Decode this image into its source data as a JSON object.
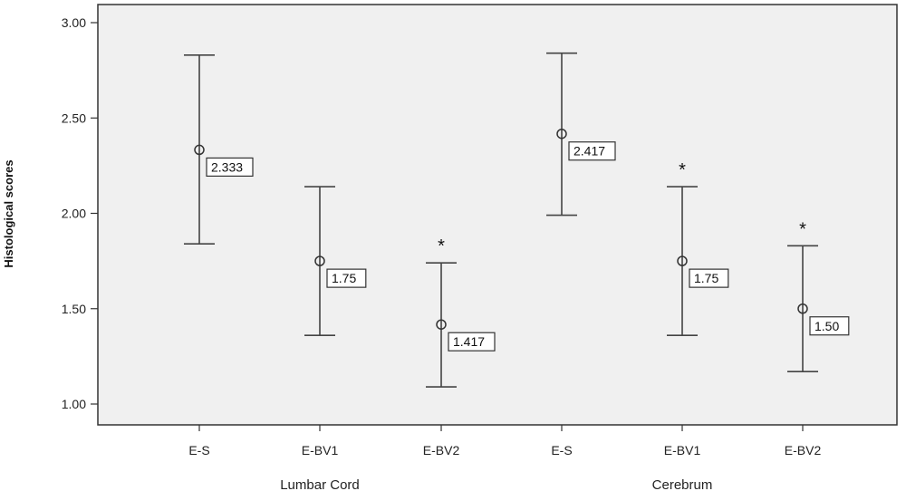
{
  "chart_data": {
    "type": "errorbar",
    "ylabel": "Histological scores",
    "ylim": [
      0.9,
      3.1
    ],
    "yticks": [
      "3.00",
      "2.50",
      "2.00",
      "1.50",
      "1.00"
    ],
    "grid": false,
    "background": "#f0f0f0",
    "groups": [
      "Lumbar Cord",
      "Cerebrum"
    ],
    "points": [
      {
        "category": "E-S",
        "group": 0,
        "mean": 2.333,
        "lower": 1.84,
        "upper": 2.83,
        "label": "2.333",
        "sig": ""
      },
      {
        "category": "E-BV1",
        "group": 0,
        "mean": 1.75,
        "lower": 1.36,
        "upper": 2.14,
        "label": "1.75",
        "sig": ""
      },
      {
        "category": "E-BV2",
        "group": 0,
        "mean": 1.417,
        "lower": 1.09,
        "upper": 1.74,
        "label": "1.417",
        "sig": "*"
      },
      {
        "category": "E-S",
        "group": 1,
        "mean": 2.417,
        "lower": 1.99,
        "upper": 2.84,
        "label": "2.417",
        "sig": ""
      },
      {
        "category": "E-BV1",
        "group": 1,
        "mean": 1.75,
        "lower": 1.36,
        "upper": 2.14,
        "label": "1.75",
        "sig": "*"
      },
      {
        "category": "E-BV2",
        "group": 1,
        "mean": 1.5,
        "lower": 1.17,
        "upper": 1.83,
        "label": "1.50",
        "sig": "*"
      }
    ]
  }
}
